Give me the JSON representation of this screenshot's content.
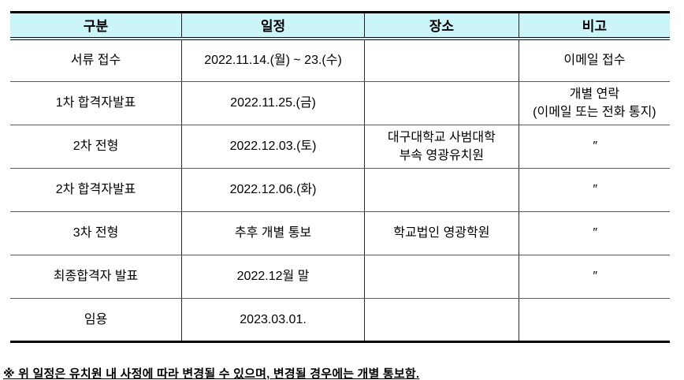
{
  "table": {
    "headers": {
      "category": "구분",
      "schedule": "일정",
      "location": "장소",
      "note": "비고"
    },
    "rows": [
      {
        "category": "서류 접수",
        "schedule": "2022.11.14.(월) ~ 23.(수)",
        "location": "",
        "note": "이메일 접수"
      },
      {
        "category": "1차 합격자발표",
        "schedule": "2022.11.25.(금)",
        "location": "",
        "note": "개별 연락\n(이메일 또는 전화 통지)"
      },
      {
        "category": "2차 전형",
        "schedule": "2022.12.03.(토)",
        "location": "대구대학교 사범대학\n부속 영광유치원",
        "note": "″"
      },
      {
        "category": "2차 합격자발표",
        "schedule": "2022.12.06.(화)",
        "location": "",
        "note": "″"
      },
      {
        "category": "3차 전형",
        "schedule": "추후 개별 통보",
        "location": "학교법인 영광학원",
        "note": "″"
      },
      {
        "category": "최종합격자 발표",
        "schedule": "2022.12월 말",
        "location": "",
        "note": "″"
      },
      {
        "category": "임용",
        "schedule": "2023.03.01.",
        "location": "",
        "note": ""
      }
    ]
  },
  "footnote": "※ 위 일정은 유치원 내 사정에 따라 변경될 수 있으며, 변경될 경우에는 개별 통보함.",
  "colors": {
    "header_bg": "#cbf5f8",
    "border_dark": "#000000"
  }
}
